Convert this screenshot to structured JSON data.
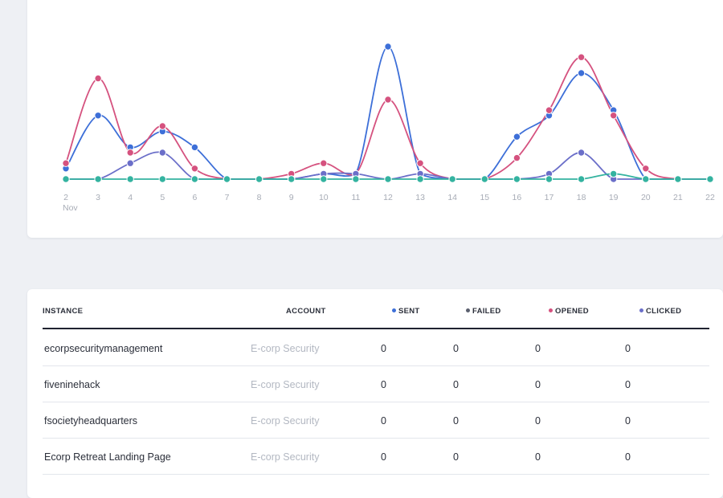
{
  "chart_data": {
    "type": "line",
    "x": [
      "2",
      "3",
      "4",
      "5",
      "6",
      "7",
      "8",
      "9",
      "10",
      "11",
      "12",
      "13",
      "14",
      "15",
      "16",
      "17",
      "18",
      "19",
      "20",
      "21",
      "22"
    ],
    "month_label": "Nov",
    "series": [
      {
        "key": "sent",
        "color": "#3d6fd8",
        "values": [
          2,
          12,
          6,
          9,
          6,
          0,
          0,
          0,
          1,
          1,
          25,
          1,
          0,
          0,
          8,
          12,
          20,
          13,
          0,
          0,
          0
        ]
      },
      {
        "key": "opened",
        "color": "#d5527f",
        "values": [
          3,
          19,
          5,
          10,
          2,
          0,
          0,
          1,
          3,
          1,
          15,
          3,
          0,
          0,
          4,
          13,
          23,
          12,
          2,
          0,
          0
        ]
      },
      {
        "key": "clicked",
        "color": "#6b6fc9",
        "values": [
          0,
          0,
          3,
          5,
          0,
          0,
          0,
          0,
          1,
          1,
          0,
          1,
          0,
          0,
          0,
          1,
          5,
          0,
          0,
          0,
          0
        ]
      },
      {
        "key": "failed",
        "color": "#34b3a0",
        "values": [
          0,
          0,
          0,
          0,
          0,
          0,
          0,
          0,
          0,
          0,
          0,
          0,
          0,
          0,
          0,
          0,
          0,
          1,
          0,
          0,
          0
        ]
      }
    ]
  },
  "table": {
    "headers": {
      "instance": "INSTANCE",
      "account": "ACCOUNT",
      "sent": "SENT",
      "failed": "FAILED",
      "opened": "OPENED",
      "clicked": "CLICKED"
    },
    "header_colors": {
      "sent": "#3d6fd8",
      "failed": "#5a5f6e",
      "opened": "#d5527f",
      "clicked": "#6b6fc9"
    },
    "rows": [
      {
        "instance": "ecorpsecuritymanagement",
        "account": "E-corp Security",
        "sent": "0",
        "failed": "0",
        "opened": "0",
        "clicked": "0"
      },
      {
        "instance": "fiveninehack",
        "account": "E-corp Security",
        "sent": "0",
        "failed": "0",
        "opened": "0",
        "clicked": "0"
      },
      {
        "instance": "fsocietyheadquarters",
        "account": "E-corp Security",
        "sent": "0",
        "failed": "0",
        "opened": "0",
        "clicked": "0"
      },
      {
        "instance": "Ecorp Retreat Landing Page",
        "account": "E-corp Security",
        "sent": "0",
        "failed": "0",
        "opened": "0",
        "clicked": "0"
      }
    ]
  }
}
